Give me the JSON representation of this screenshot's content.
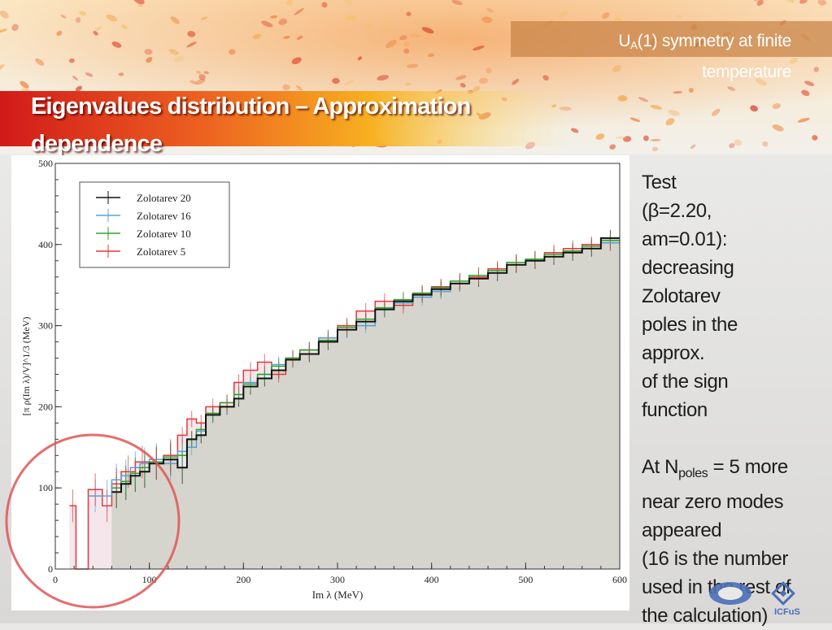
{
  "header": {
    "section_title_prefix": "U",
    "section_title_sub": "A",
    "section_title_rest": "(1) symmetry at finite temperature"
  },
  "slide": {
    "title": "Eigenvalues distribution – Approximation dependence"
  },
  "text": {
    "lines": [
      "Test",
      "(β=2.20,",
      "am=0.01):",
      "decreasing",
      "Zolotarev",
      "poles in the",
      "approx.",
      "of the sign",
      "function"
    ],
    "npoles_prefix": "At N",
    "npoles_sub": "poles",
    "npoles_suffix": " = 5 more",
    "lines2": [
      "near zero modes",
      "appeared",
      "(16 is the number",
      "used in the rest of",
      "the calculation)"
    ]
  },
  "logo": {
    "label": "ICFuS"
  },
  "colors": {
    "red": "#e8363a",
    "blue": "#55a0e0",
    "green": "#2aa52a",
    "black": "#111111",
    "fill": "#d2d3ca",
    "pinkfill": "#f0dbe2",
    "circle": "#e05555"
  },
  "chart_data": {
    "type": "line",
    "step": true,
    "title": "",
    "xlabel": "Im λ (MeV)",
    "ylabel": "[π ρ(Im λ)/V]^1/3 (MeV)",
    "xlim": [
      0,
      600
    ],
    "ylim": [
      0,
      500
    ],
    "x_ticks": [
      0,
      100,
      200,
      300,
      400,
      500,
      600
    ],
    "y_ticks": [
      0,
      100,
      200,
      300,
      400,
      500
    ],
    "legend_position": "top-left",
    "grid": false,
    "series": [
      {
        "name": "Zolotarev 20",
        "color": "#111111",
        "x": [
          60,
          70,
          80,
          90,
          100,
          115,
          130,
          140,
          150,
          160,
          175,
          190,
          200,
          215,
          230,
          245,
          260,
          280,
          300,
          320,
          340,
          360,
          380,
          400,
          420,
          440,
          460,
          480,
          500,
          520,
          540,
          560,
          580,
          600
        ],
        "y": [
          95,
          105,
          115,
          120,
          130,
          135,
          125,
          160,
          165,
          190,
          200,
          210,
          225,
          235,
          245,
          258,
          265,
          280,
          295,
          305,
          320,
          330,
          338,
          345,
          352,
          358,
          365,
          375,
          380,
          385,
          390,
          395,
          408,
          408
        ]
      },
      {
        "name": "Zolotarev 16",
        "color": "#55a0e0",
        "x": [
          35,
          50,
          60,
          70,
          80,
          90,
          100,
          115,
          130,
          140,
          150,
          160,
          175,
          190,
          200,
          215,
          230,
          245,
          260,
          280,
          300,
          320,
          340,
          360,
          380,
          400,
          420,
          440,
          460,
          480,
          500,
          520,
          540,
          560,
          580,
          600
        ],
        "y": [
          90,
          90,
          110,
          115,
          125,
          130,
          135,
          130,
          145,
          150,
          170,
          190,
          200,
          215,
          230,
          240,
          252,
          258,
          270,
          285,
          295,
          300,
          320,
          328,
          335,
          342,
          352,
          362,
          368,
          378,
          382,
          388,
          392,
          398,
          402,
          402
        ]
      },
      {
        "name": "Zolotarev 10",
        "color": "#2aa52a",
        "x": [
          60,
          70,
          80,
          90,
          100,
          115,
          130,
          140,
          150,
          160,
          175,
          190,
          200,
          215,
          230,
          245,
          260,
          280,
          300,
          320,
          340,
          360,
          380,
          400,
          420,
          440,
          460,
          480,
          500,
          520,
          540,
          560,
          580,
          600
        ],
        "y": [
          100,
          108,
          118,
          125,
          132,
          138,
          140,
          160,
          172,
          192,
          205,
          215,
          228,
          240,
          250,
          260,
          270,
          282,
          298,
          308,
          322,
          332,
          340,
          347,
          355,
          362,
          368,
          378,
          382,
          388,
          392,
          398,
          405,
          405
        ]
      },
      {
        "name": "Zolotarev 5",
        "color": "#e8363a",
        "x": [
          15,
          22,
          35,
          50,
          60,
          70,
          85,
          100,
          115,
          130,
          140,
          150,
          160,
          175,
          190,
          200,
          215,
          230,
          245,
          260,
          280,
          300,
          320,
          340,
          360,
          380,
          400,
          420,
          440,
          460,
          480,
          500,
          520,
          540,
          560,
          580,
          600
        ],
        "y": [
          78,
          0,
          98,
          78,
          105,
          120,
          132,
          130,
          140,
          165,
          185,
          180,
          200,
          205,
          230,
          245,
          255,
          240,
          260,
          270,
          285,
          300,
          318,
          330,
          325,
          340,
          348,
          355,
          360,
          370,
          378,
          382,
          390,
          395,
          400,
          402,
          402
        ]
      }
    ]
  }
}
